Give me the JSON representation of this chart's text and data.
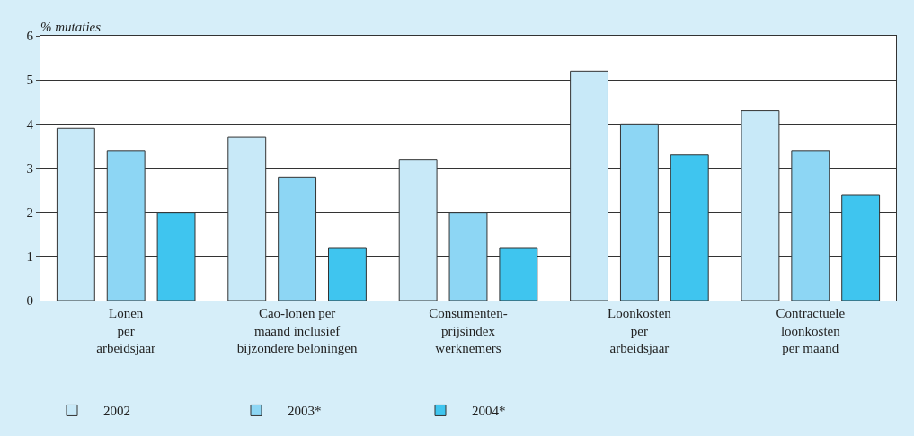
{
  "chart_data": {
    "type": "bar",
    "ylabel": "% mutaties",
    "categories": [
      "Lonen\nper\narbeidsjaar",
      "Cao-lonen per\nmaand inclusief\nbijzondere beloningen",
      "Consumenten-\nprijsindex\nwerknemers",
      "Loonkosten\nper\narbeidsjaar",
      "Contractuele\nloonkosten\nper maand"
    ],
    "series": [
      {
        "name": "2002",
        "color": "#c8e9f8",
        "values": [
          3.9,
          3.7,
          3.2,
          5.2,
          4.3
        ]
      },
      {
        "name": "2003*",
        "color": "#8dd6f4",
        "values": [
          3.4,
          2.8,
          2.0,
          4.0,
          3.4
        ]
      },
      {
        "name": "2004*",
        "color": "#3fc5ef",
        "values": [
          2.0,
          1.2,
          1.2,
          3.3,
          2.4
        ]
      }
    ],
    "ylim": [
      0,
      6
    ],
    "yticks": [
      0,
      1,
      2,
      3,
      4,
      5,
      6
    ],
    "grid": "y",
    "legend": "bottom left"
  }
}
